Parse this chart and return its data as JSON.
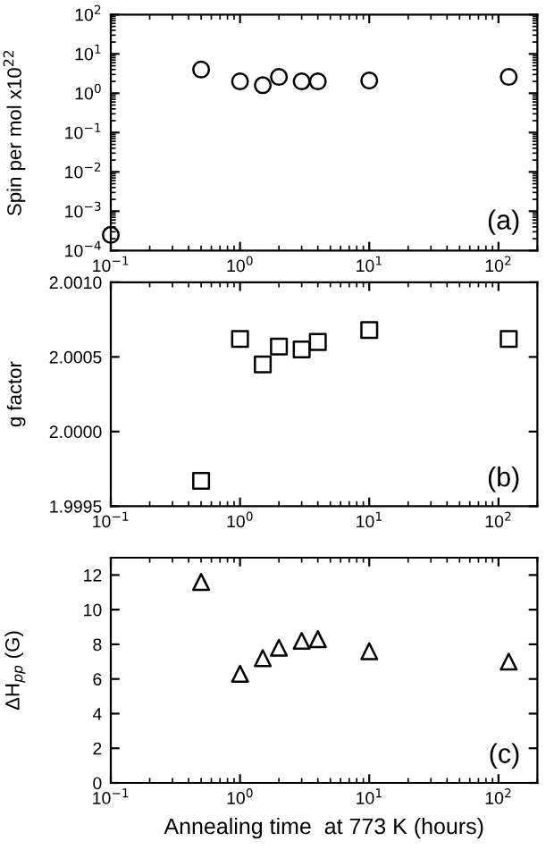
{
  "chart_data": [
    {
      "type": "scatter",
      "ylabel": "Spin per mol x10$^{22}$",
      "x": [
        0.1,
        0.5,
        1,
        1.5,
        2,
        3,
        4,
        10,
        120
      ],
      "values": [
        0.00025,
        4,
        2,
        1.6,
        2.6,
        2,
        2,
        2.1,
        2.6
      ],
      "color": "#000000",
      "marker": "circle",
      "log": "xy",
      "xlim": [
        0.1,
        200
      ],
      "xticks": [
        {
          "value": 0.1,
          "label": "10$^{−1}$"
        },
        {
          "value": 1,
          "label": "10$^{0}$"
        },
        {
          "value": 10,
          "label": "10$^{1}$"
        },
        {
          "value": 100,
          "label": "10$^{2}$"
        }
      ],
      "ylim": [
        0.0001,
        100
      ],
      "yticks": [
        {
          "value": 0.0001,
          "label": "10$^{−4}$"
        },
        {
          "value": 0.001,
          "label": "10$^{−3}$"
        },
        {
          "value": 0.01,
          "label": "10$^{−2}$"
        },
        {
          "value": 0.1,
          "label": "10$^{−1}$"
        },
        {
          "value": 1,
          "label": "10$^{0}$"
        },
        {
          "value": 10,
          "label": "10$^{1}$"
        },
        {
          "value": 100,
          "label": "10$^{2}$"
        }
      ],
      "grid": false,
      "annotations": [
        "(a)"
      ]
    },
    {
      "type": "scatter",
      "ylabel": "g factor",
      "x": [
        0.5,
        1,
        1.5,
        2,
        3,
        4,
        10,
        120
      ],
      "values": [
        1.99967,
        2.00062,
        2.00045,
        2.00057,
        2.00055,
        2.0006,
        2.00068,
        2.00062
      ],
      "color": "#000000",
      "marker": "square",
      "log": "x",
      "xlim": [
        0.1,
        200
      ],
      "xticks": [
        {
          "value": 0.1,
          "label": "10$^{−1}$"
        },
        {
          "value": 1,
          "label": "10$^{0}$"
        },
        {
          "value": 10,
          "label": "10$^{1}$"
        },
        {
          "value": 100,
          "label": "10$^{2}$"
        }
      ],
      "ylim": [
        1.9995,
        2.001
      ],
      "yticks": [
        {
          "value": 1.9995,
          "label": "1.9995"
        },
        {
          "value": 2.0,
          "label": "2.0000"
        },
        {
          "value": 2.0005,
          "label": "2.0005"
        },
        {
          "value": 2.001,
          "label": "2.0010"
        }
      ],
      "grid": false,
      "annotations": [
        "(b)"
      ]
    },
    {
      "type": "scatter",
      "ylabel": "ΔH$_{pp}$ (G)",
      "xlabel": "Annealing time  at 773 K (hours)",
      "x": [
        0.5,
        1,
        1.5,
        2,
        3,
        4,
        10,
        120
      ],
      "values": [
        11.6,
        6.3,
        7.2,
        7.8,
        8.2,
        8.3,
        7.6,
        7.0
      ],
      "color": "#000000",
      "marker": "triangle",
      "log": "x",
      "xlim": [
        0.1,
        200
      ],
      "xticks": [
        {
          "value": 0.1,
          "label": "10$^{−1}$"
        },
        {
          "value": 1,
          "label": "10$^{0}$"
        },
        {
          "value": 10,
          "label": "10$^{1}$"
        },
        {
          "value": 100,
          "label": "10$^{2}$"
        }
      ],
      "ylim": [
        0,
        13
      ],
      "yticks": [
        0,
        2,
        4,
        6,
        8,
        10,
        12
      ],
      "grid": false,
      "annotations": [
        "(c)"
      ]
    }
  ]
}
